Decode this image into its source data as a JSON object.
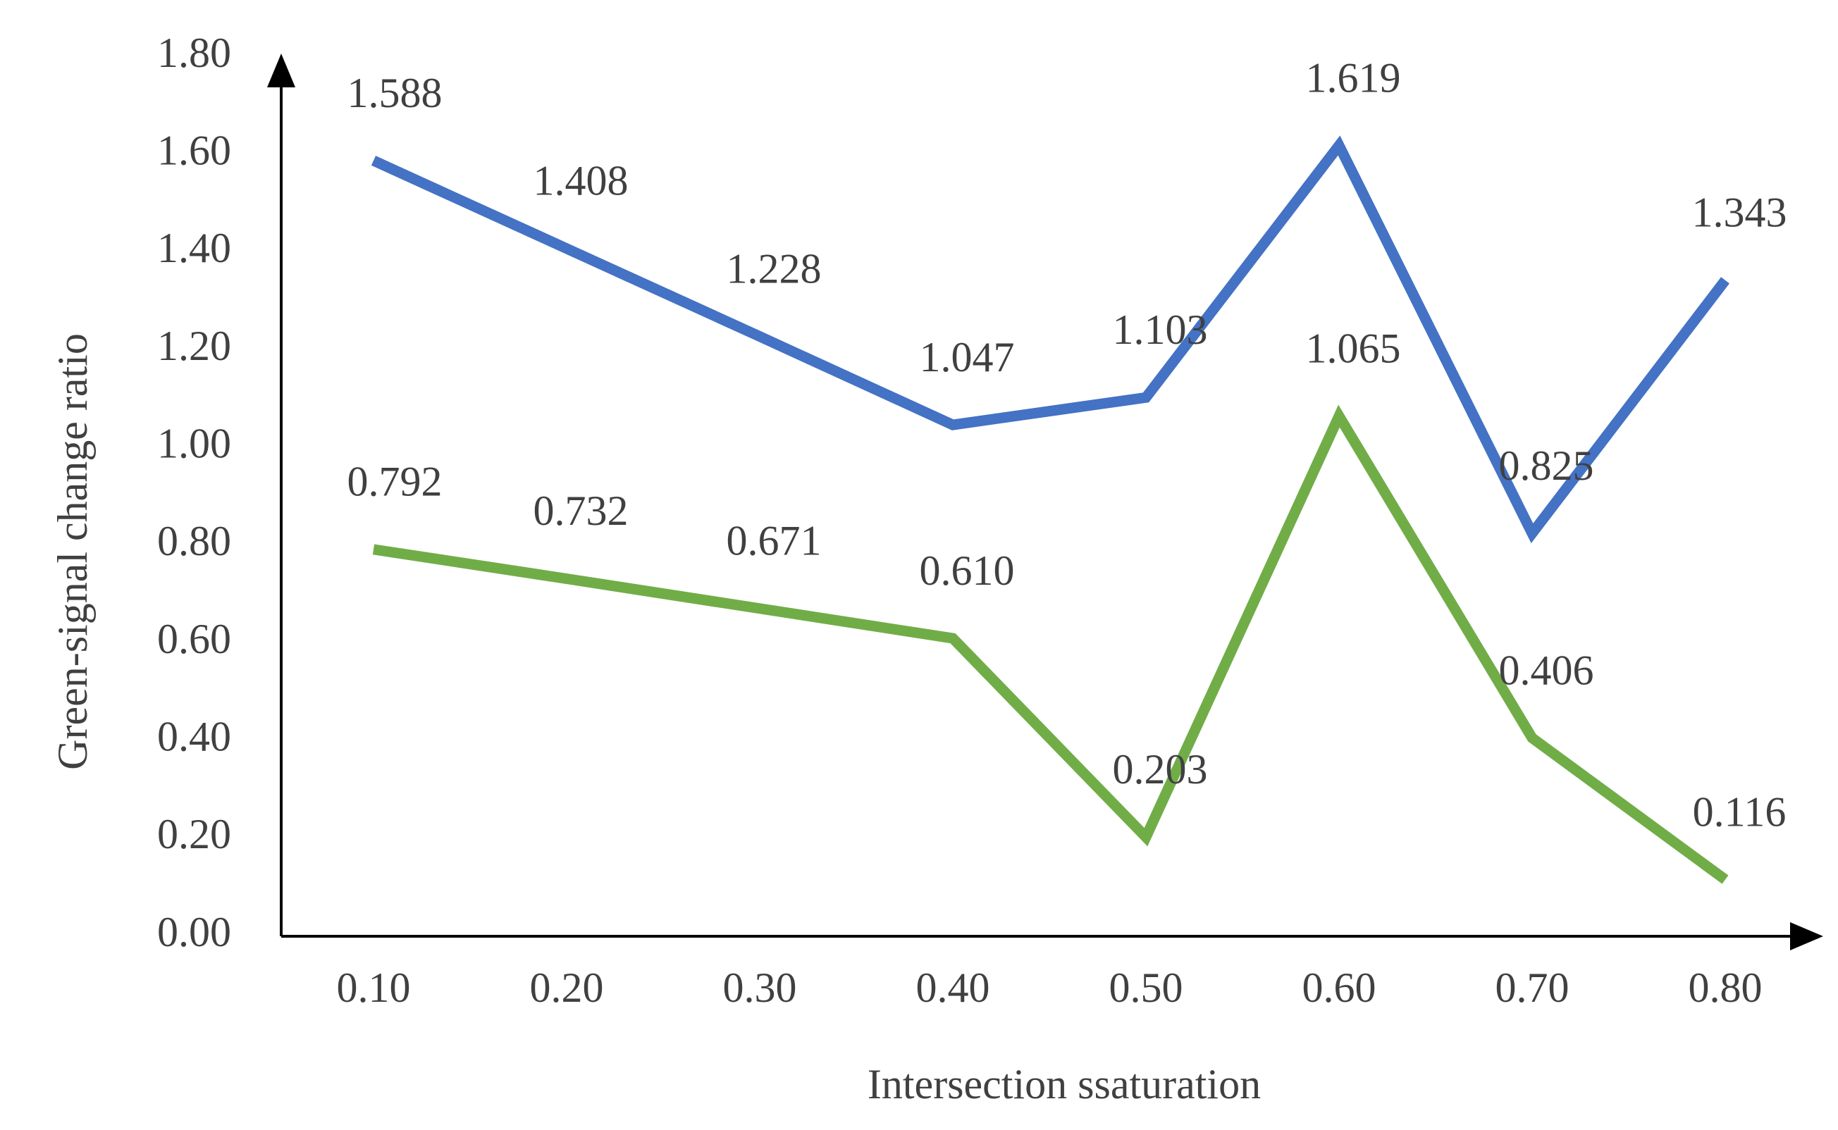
{
  "chart_data": {
    "type": "line",
    "x_label": "Intersection ssaturation",
    "y_label": "Green-signal change ratio",
    "categories": [
      "0.10",
      "0.20",
      "0.30",
      "0.40",
      "0.50",
      "0.60",
      "0.70",
      "0.80"
    ],
    "series": [
      {
        "color": "#4472c4",
        "values": [
          1.588,
          1.408,
          1.228,
          1.047,
          1.103,
          1.619,
          0.825,
          1.343
        ],
        "value_labels": [
          "1.588",
          "1.408",
          "1.228",
          "1.047",
          "1.103",
          "1.619",
          "0.825",
          "1.343"
        ]
      },
      {
        "color": "#70ad47",
        "values": [
          0.792,
          0.732,
          0.671,
          0.61,
          0.203,
          1.065,
          0.406,
          0.116
        ],
        "value_labels": [
          "0.792",
          "0.732",
          "0.671",
          "0.610",
          "0.203",
          "1.065",
          "0.406",
          "0.116"
        ]
      }
    ],
    "ylim": [
      0,
      1.8
    ],
    "yticks": [
      {
        "value": 0,
        "label": "0.00"
      },
      {
        "value": 0.2,
        "label": "0.20"
      },
      {
        "value": 0.4,
        "label": "0.40"
      },
      {
        "value": 0.6,
        "label": "0.60"
      },
      {
        "value": 0.8,
        "label": "0.80"
      },
      {
        "value": 1,
        "label": "1.00"
      },
      {
        "value": 1.2,
        "label": "1.20"
      },
      {
        "value": 1.4,
        "label": "1.40"
      },
      {
        "value": 1.6,
        "label": "1.60"
      },
      {
        "value": 1.8,
        "label": "1.80"
      }
    ],
    "grid": false
  }
}
